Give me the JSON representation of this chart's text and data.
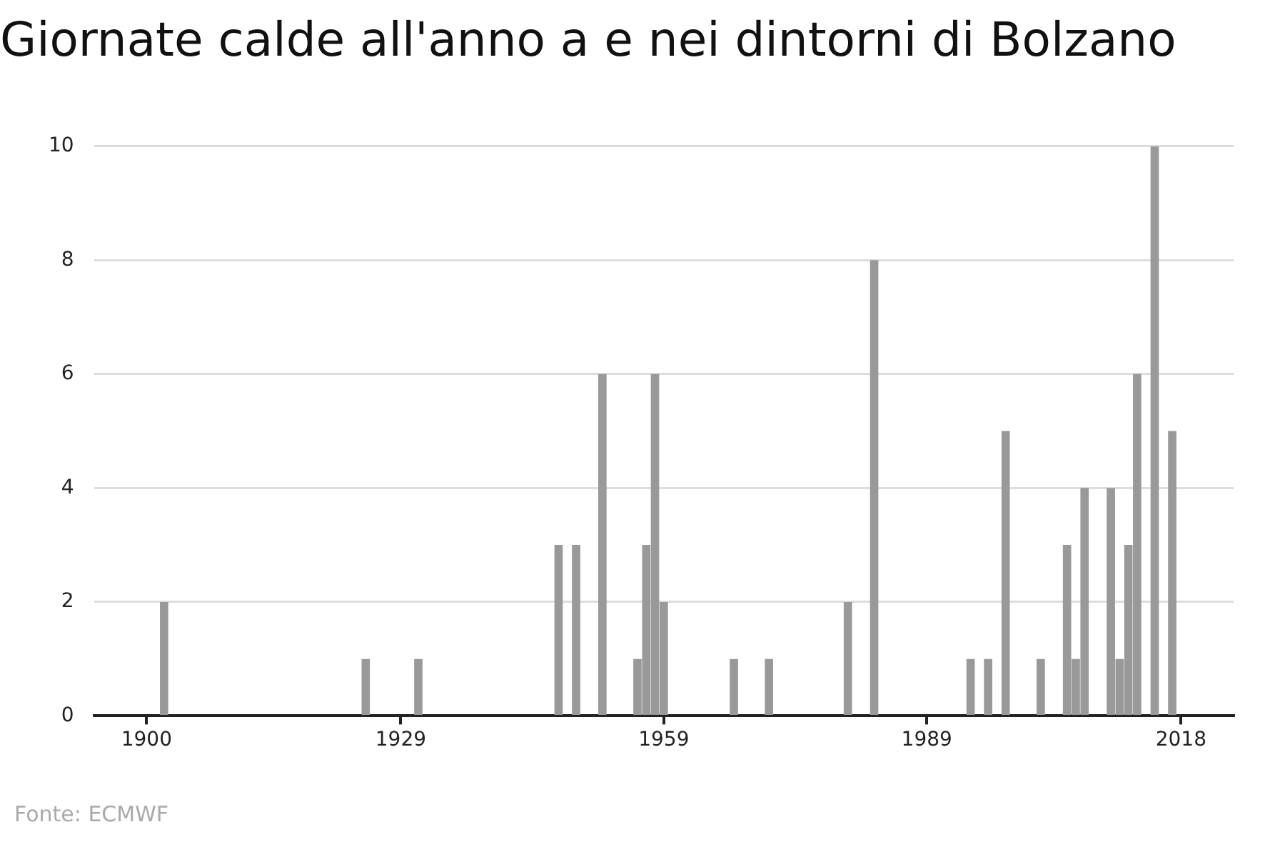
{
  "chart_data": {
    "type": "bar",
    "title": "Giornate calde all'anno a e nei dintorni di Bolzano",
    "x": [
      1902,
      1925,
      1931,
      1947,
      1949,
      1952,
      1956,
      1957,
      1958,
      1959,
      1967,
      1971,
      1980,
      1983,
      1994,
      1996,
      1998,
      2002,
      2005,
      2006,
      2007,
      2010,
      2011,
      2012,
      2013,
      2015,
      2017
    ],
    "values": [
      2,
      1,
      1,
      3,
      3,
      6,
      1,
      3,
      6,
      2,
      1,
      1,
      2,
      8,
      1,
      1,
      5,
      1,
      3,
      1,
      4,
      4,
      1,
      3,
      6,
      10,
      5
    ],
    "color": "#999999",
    "xlim": [
      1894,
      2024
    ],
    "xticks": [
      1900,
      1929,
      1959,
      1989,
      2018
    ],
    "ylim": [
      0,
      10
    ],
    "yticks": [
      0,
      2,
      4,
      6,
      8,
      10
    ],
    "grid": "y",
    "legend": false,
    "annotations": [
      "Fonte: ECMWF"
    ]
  }
}
